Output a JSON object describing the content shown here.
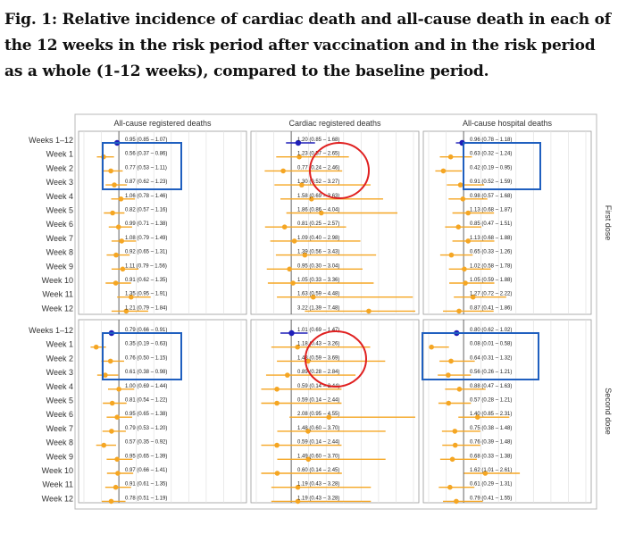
{
  "caption": "Fig. 1: Relative incidence of cardiac death and all-cause death in each of the 12 weeks in the risk period after vaccination and in the risk period as a whole (1-12 weeks), compared to the baseline period.",
  "colors": {
    "point": "#f5a623",
    "overall": "#1f1fb8",
    "highlight_box": "#1f5fbf",
    "highlight_circle": "#e02020"
  },
  "chart_data": {
    "type": "forest",
    "rows": [
      "Weeks 1–12",
      "Week 1",
      "Week 2",
      "Week 3",
      "Week 4",
      "Week 5",
      "Week 6",
      "Week 7",
      "Week 8",
      "Week 9",
      "Week 10",
      "Week 11",
      "Week 12"
    ],
    "panels": [
      "All-cause registered deaths",
      "Cardiac registered deaths",
      "All-cause hospital deaths"
    ],
    "strips": [
      "First dose",
      "Second dose"
    ],
    "xlim": [
      0,
      4.5
    ],
    "data": [
      [
        [
          [
            0.95,
            0.85,
            1.07
          ],
          [
            0.56,
            0.37,
            0.86
          ],
          [
            0.77,
            0.53,
            1.11
          ],
          [
            0.87,
            0.62,
            1.23
          ],
          [
            1.06,
            0.78,
            1.46
          ],
          [
            0.82,
            0.57,
            1.16
          ],
          [
            0.99,
            0.71,
            1.38
          ],
          [
            1.08,
            0.79,
            1.49
          ],
          [
            0.92,
            0.65,
            1.31
          ],
          [
            1.11,
            0.79,
            1.56
          ],
          [
            0.91,
            0.62,
            1.35
          ],
          [
            1.35,
            0.95,
            1.91
          ],
          [
            1.21,
            0.79,
            1.84
          ]
        ],
        [
          [
            1.2,
            0.85,
            1.68
          ],
          [
            1.23,
            0.57,
            2.65
          ],
          [
            0.77,
            0.24,
            2.46
          ],
          [
            1.3,
            0.52,
            3.27
          ],
          [
            1.58,
            0.69,
            3.63
          ],
          [
            1.86,
            0.86,
            4.04
          ],
          [
            0.81,
            0.25,
            2.57
          ],
          [
            1.09,
            0.4,
            2.98
          ],
          [
            1.39,
            0.56,
            3.43
          ],
          [
            0.95,
            0.3,
            3.04
          ],
          [
            1.05,
            0.33,
            3.36
          ],
          [
            1.63,
            0.59,
            4.48
          ],
          [
            3.22,
            1.39,
            7.48
          ]
        ],
        [
          [
            0.96,
            0.78,
            1.18
          ],
          [
            0.63,
            0.32,
            1.24
          ],
          [
            0.42,
            0.19,
            0.95
          ],
          [
            0.91,
            0.52,
            1.59
          ],
          [
            0.98,
            0.57,
            1.68
          ],
          [
            1.13,
            0.68,
            1.87
          ],
          [
            0.85,
            0.47,
            1.51
          ],
          [
            1.13,
            0.68,
            1.88
          ],
          [
            0.65,
            0.33,
            1.26
          ],
          [
            1.02,
            0.58,
            1.78
          ],
          [
            1.05,
            0.59,
            1.88
          ],
          [
            1.27,
            0.72,
            2.22
          ],
          [
            0.87,
            0.41,
            1.86
          ]
        ]
      ],
      [
        [
          [
            0.79,
            0.66,
            0.91
          ],
          [
            0.35,
            0.19,
            0.63
          ],
          [
            0.76,
            0.5,
            1.15
          ],
          [
            0.61,
            0.38,
            0.98
          ],
          [
            1.0,
            0.69,
            1.44
          ],
          [
            0.81,
            0.54,
            1.22
          ],
          [
            0.95,
            0.65,
            1.38
          ],
          [
            0.79,
            0.53,
            1.2
          ],
          [
            0.57,
            0.35,
            0.92
          ],
          [
            0.95,
            0.65,
            1.39
          ],
          [
            0.97,
            0.66,
            1.41
          ],
          [
            0.91,
            0.61,
            1.35
          ],
          [
            0.78,
            0.51,
            1.19
          ]
        ],
        [
          [
            1.01,
            0.69,
            1.47
          ],
          [
            1.18,
            0.43,
            3.26
          ],
          [
            1.48,
            0.59,
            3.69
          ],
          [
            0.89,
            0.28,
            2.84
          ],
          [
            0.59,
            0.14,
            2.44
          ],
          [
            0.59,
            0.14,
            2.44
          ],
          [
            2.08,
            0.95,
            4.55
          ],
          [
            1.48,
            0.6,
            3.7
          ],
          [
            0.59,
            0.14,
            2.44
          ],
          [
            1.49,
            0.6,
            3.7
          ],
          [
            0.6,
            0.14,
            2.45
          ],
          [
            1.19,
            0.43,
            3.28
          ],
          [
            1.19,
            0.43,
            3.28
          ]
        ],
        [
          [
            0.8,
            0.62,
            1.02
          ],
          [
            0.08,
            0.01,
            0.58
          ],
          [
            0.64,
            0.31,
            1.32
          ],
          [
            0.56,
            0.26,
            1.21
          ],
          [
            0.88,
            0.47,
            1.63
          ],
          [
            0.57,
            0.28,
            1.21
          ],
          [
            1.4,
            0.85,
            2.31
          ],
          [
            0.75,
            0.38,
            1.48
          ],
          [
            0.76,
            0.39,
            1.48
          ],
          [
            0.68,
            0.33,
            1.38
          ],
          [
            1.62,
            1.01,
            2.61
          ],
          [
            0.61,
            0.29,
            1.31
          ],
          [
            0.79,
            0.41,
            1.55
          ]
        ]
      ]
    ]
  }
}
